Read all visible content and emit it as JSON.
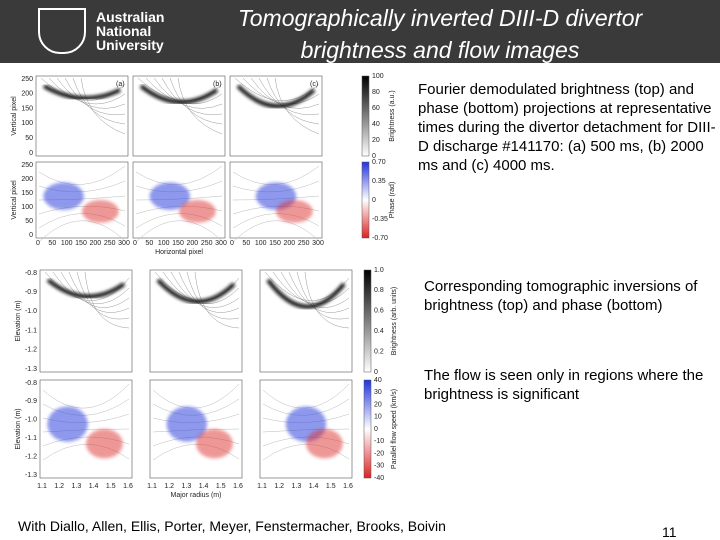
{
  "header": {
    "logo": [
      "Australian",
      "National",
      "University"
    ],
    "title_lines": [
      "Tomographically inverted DIII-D divertor",
      "brightness and flow images"
    ]
  },
  "figure_top": {
    "panel_labels": [
      "(a)",
      "(b)",
      "(c)"
    ],
    "yticks": [
      "250",
      "200",
      "150",
      "100",
      "50",
      "0"
    ],
    "xticks": [
      "0",
      "50",
      "100",
      "150",
      "200",
      "250",
      "300"
    ],
    "y_label": "Vertical pixel",
    "x_label": "Horizontal pixel",
    "colorbar_top": {
      "label": "Brightness (a.u.)",
      "ticks": [
        "100",
        "80",
        "60",
        "40",
        "20",
        "0"
      ]
    },
    "colorbar_bottom": {
      "label": "Phase (rad)",
      "ticks": [
        "0.70",
        "0.35",
        "0",
        "-0.35",
        "-0.70"
      ]
    }
  },
  "figure_bottom": {
    "yticks": [
      "-0.8",
      "-0.9",
      "-1.0",
      "-1.1",
      "-1.2",
      "-1.3"
    ],
    "xticks": [
      "1.1",
      "1.2",
      "1.3",
      "1.4",
      "1.5",
      "1.6"
    ],
    "y_label": "Elevation (m)",
    "x_label": "Major radius (m)",
    "colorbar_top": {
      "label": "Brightness (arb. units)",
      "ticks": [
        "1.0",
        "0.8",
        "0.6",
        "0.4",
        "0.2",
        "0"
      ]
    },
    "colorbar_bottom": {
      "label": "Parallel flow speed (km/s)",
      "ticks": [
        "40",
        "30",
        "20",
        "10",
        "0",
        "-10",
        "-20",
        "-30",
        "-40"
      ]
    }
  },
  "captions": [
    "Fourier demodulated brightness (top) and phase (bottom) projections at representative times during the divertor detachment for DIII-D discharge #141170: (a) 500 ms, (b) 2000 ms and (c) 4000 ms.",
    "Corresponding tomographic inversions of brightness (top) and phase (bottom)",
    "The flow is seen only in regions where the brightness is significant"
  ],
  "footer": {
    "authors": "With Diallo, Allen, Ellis, Porter, Meyer, Fenstermacher, Brooks, Boivin",
    "page_number": "11"
  }
}
